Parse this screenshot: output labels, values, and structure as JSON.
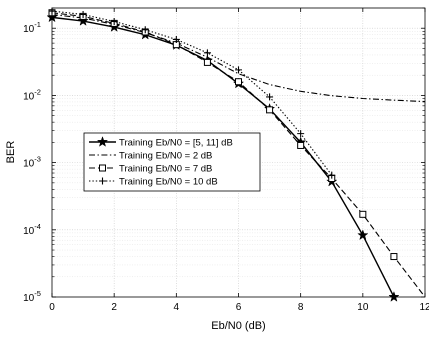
{
  "chart_data": {
    "type": "line",
    "xlabel": "Eb/N0 (dB)",
    "ylabel": "BER",
    "xlim": [
      0,
      12
    ],
    "ylim": [
      1e-05,
      0.2
    ],
    "yscale": "log",
    "grid": true,
    "legend_position": "center-left",
    "x_ticks": [
      "0",
      "2",
      "4",
      "6",
      "8",
      "10",
      "12"
    ],
    "y_ticks": [
      {
        "value": 0.1,
        "base": "10",
        "exp": "-1"
      },
      {
        "value": 0.01,
        "base": "10",
        "exp": "-2"
      },
      {
        "value": 0.001,
        "base": "10",
        "exp": "-3"
      },
      {
        "value": 0.0001,
        "base": "10",
        "exp": "-4"
      },
      {
        "value": 1e-05,
        "base": "10",
        "exp": "-5"
      }
    ],
    "series": [
      {
        "name": "Training Eb/N0 = [5,  11] dB",
        "style": "solid",
        "marker": "star",
        "color": "#000000",
        "x": [
          0,
          1,
          2,
          3,
          4,
          5,
          6,
          7,
          8,
          9,
          10,
          11
        ],
        "y": [
          0.145,
          0.128,
          0.104,
          0.08,
          0.056,
          0.033,
          0.015,
          0.0063,
          0.002,
          0.00052,
          8.3e-05,
          1e-05
        ]
      },
      {
        "name": "Training Eb/N0 = 2 dB",
        "style": "dashdot",
        "marker": "none",
        "color": "#000000",
        "x": [
          0,
          1,
          2,
          3,
          4,
          5,
          6,
          7,
          8,
          9,
          10,
          11,
          12
        ],
        "y": [
          0.16,
          0.142,
          0.114,
          0.086,
          0.06,
          0.037,
          0.021,
          0.0145,
          0.0115,
          0.0099,
          0.009,
          0.0085,
          0.0081
        ]
      },
      {
        "name": "Training Eb/N0 = 7 dB",
        "style": "dashed",
        "marker": "square",
        "color": "#000000",
        "x": [
          0,
          1,
          2,
          3,
          4,
          5,
          6,
          7,
          8,
          9,
          10,
          11,
          12
        ],
        "y": [
          0.17,
          0.15,
          0.118,
          0.088,
          0.057,
          0.031,
          0.016,
          0.0061,
          0.0018,
          0.00058,
          0.00017,
          4e-05,
          8.5e-06
        ]
      },
      {
        "name": "Training Eb/N0 = 10 dB",
        "style": "dotted",
        "marker": "plus",
        "color": "#000000",
        "x": [
          0,
          1,
          2,
          3,
          4,
          5,
          6,
          7,
          8,
          9
        ],
        "y": [
          0.18,
          0.16,
          0.126,
          0.095,
          0.068,
          0.043,
          0.024,
          0.0095,
          0.0027,
          0.00065
        ]
      }
    ]
  }
}
